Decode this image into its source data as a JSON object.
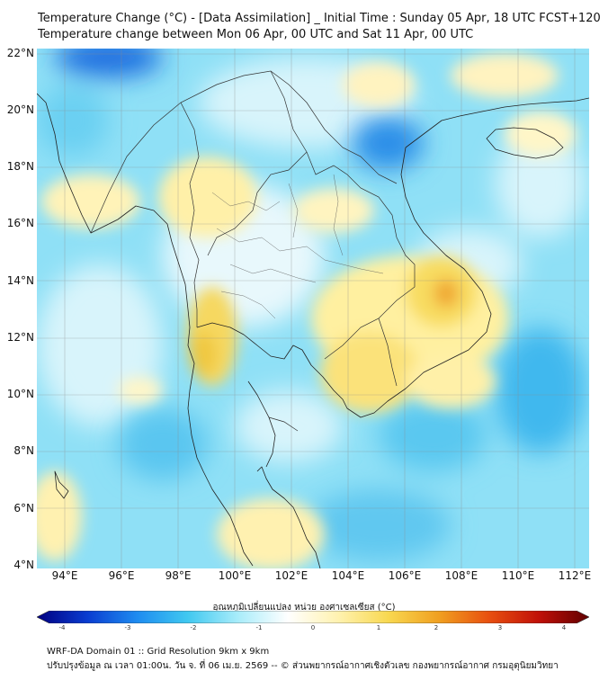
{
  "title_line1": "Temperature Change (°C) - [Data Assimilation] _ Initial Time : Sunday 05 Apr, 18 UTC FCST+120",
  "title_line2": "Temperature change between Mon 06 Apr, 00 UTC and Sat 11 Apr, 00 UTC",
  "map": {
    "lat_ticks": [
      "22°N",
      "20°N",
      "18°N",
      "16°N",
      "14°N",
      "12°N",
      "10°N",
      "8°N",
      "6°N",
      "4°N"
    ],
    "lon_ticks": [
      "94°E",
      "96°E",
      "98°E",
      "100°E",
      "102°E",
      "104°E",
      "106°E",
      "108°E",
      "110°E",
      "112°E"
    ],
    "extent": {
      "lon_min": 93,
      "lon_max": 112.5,
      "lat_min": 4,
      "lat_max": 22.3
    }
  },
  "colorbar": {
    "label": "อุณหภูมิเปลี่ยนแปลง หน่วย องศาเซลเซียส (°C)",
    "ticks": [
      "-4",
      "-3",
      "-2",
      "-1",
      "0",
      "1",
      "2",
      "3",
      "4"
    ],
    "range": [
      -4,
      4
    ],
    "colors": [
      "#000080",
      "#0a3cd0",
      "#1e8cf0",
      "#40c8f0",
      "#a8ecfa",
      "#ffffff",
      "#fff2b0",
      "#f8d850",
      "#f0a020",
      "#e85010",
      "#c01008",
      "#600000"
    ]
  },
  "footer_line1": "WRF-DA Domain 01 :: Grid Resolution 9km x 9km",
  "footer_line2": "ปรับปรุงข้อมูล ณ เวลา 01:00น. วัน จ. ที่ 06 เม.ย. 2569 -- © ส่วนพยากรณ์อากาศเชิงตัวเลข กองพยากรณ์อากาศ กรมอุตุนิยมวิทยา"
}
